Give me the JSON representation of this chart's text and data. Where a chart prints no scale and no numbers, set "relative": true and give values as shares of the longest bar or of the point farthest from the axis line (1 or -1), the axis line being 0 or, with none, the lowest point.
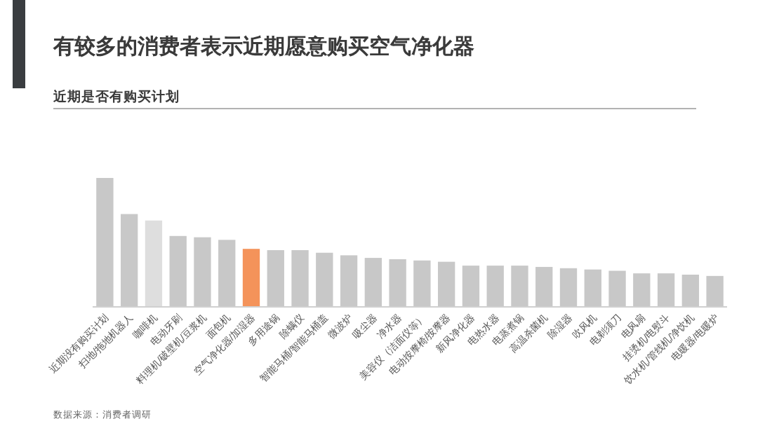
{
  "chart_data": {
    "type": "bar",
    "relative": true,
    "title": "有较多的消费者表示近期愿意购买空气净化器",
    "subtitle": "近期是否有购买计划",
    "categories": [
      "近期没有购买计划",
      "扫地/拖地机器人",
      "咖啡机",
      "电动牙刷",
      "料理机/破壁机/豆浆机",
      "面包机",
      "空气净化器/加湿器",
      "多用途锅",
      "除螨仪",
      "智能马桶/智能马桶盖",
      "微波炉",
      "吸尘器",
      "净水器",
      "美容仪（洁面仪等）",
      "电动按摩椅/按摩器",
      "新风净化器",
      "电热水器",
      "电蒸煮锅",
      "高温杀菌机",
      "除湿器",
      "吹风机",
      "电剃须刀",
      "电风扇",
      "挂烫机/电熨斗",
      "饮水机/管线机/净饮机",
      "电暖器/电暖炉"
    ],
    "values": [
      1,
      0.72,
      0.67,
      0.55,
      0.54,
      0.52,
      0.45,
      0.44,
      0.44,
      0.42,
      0.4,
      0.38,
      0.37,
      0.36,
      0.35,
      0.32,
      0.32,
      0.32,
      0.31,
      0.3,
      0.29,
      0.28,
      0.26,
      0.26,
      0.25,
      0.24
    ],
    "colors": [
      "#c8c8c8",
      "#c8c8c8",
      "#dedede",
      "#c8c8c8",
      "#c8c8c8",
      "#c8c8c8",
      "#f4935a",
      "#c8c8c8",
      "#c8c8c8",
      "#c8c8c8",
      "#c8c8c8",
      "#c8c8c8",
      "#c8c8c8",
      "#c8c8c8",
      "#c8c8c8",
      "#c8c8c8",
      "#c8c8c8",
      "#c8c8c8",
      "#c8c8c8",
      "#c8c8c8",
      "#c8c8c8",
      "#c8c8c8",
      "#c8c8c8",
      "#c8c8c8",
      "#c8c8c8",
      "#c8c8c8"
    ],
    "annotations": [
      "数据来源：消费者调研"
    ],
    "grid": false
  }
}
